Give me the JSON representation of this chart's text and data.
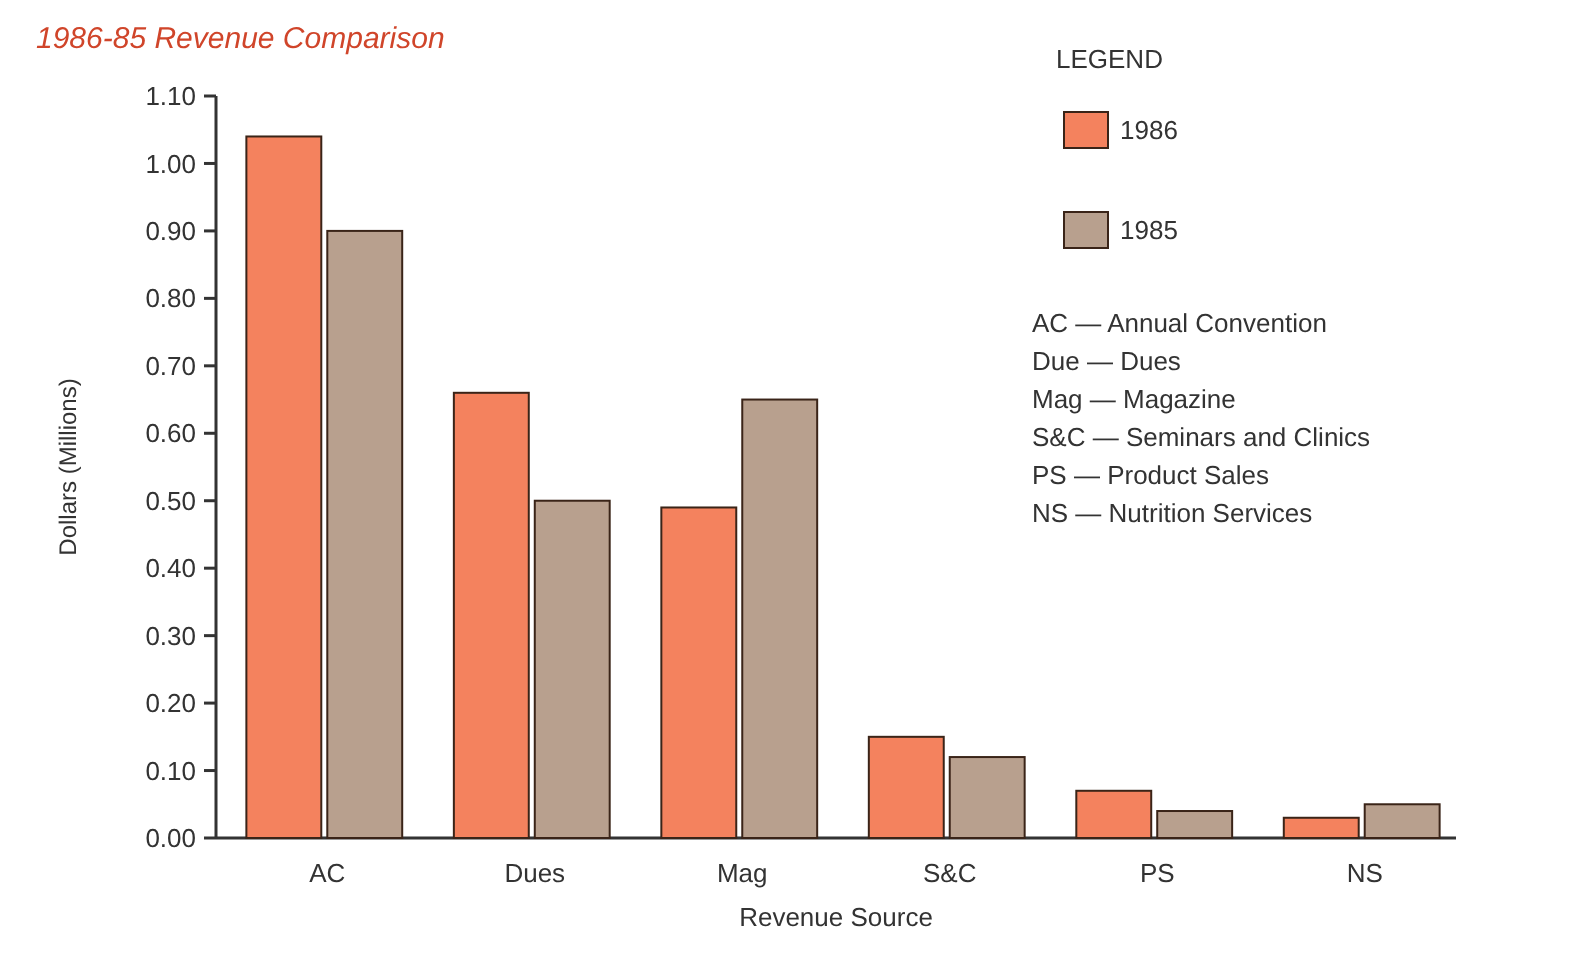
{
  "chart_data": {
    "type": "bar",
    "title": "1986-85 Revenue Comparison",
    "xlabel": "Revenue Source",
    "ylabel": "Dollars (Millions)",
    "legend_title": "LEGEND",
    "legend": "top right",
    "categories": [
      "AC",
      "Dues",
      "Mag",
      "S&C",
      "PS",
      "NS"
    ],
    "series": [
      {
        "name": "1986",
        "color": "#f4825e",
        "values": [
          1.04,
          0.66,
          0.49,
          0.15,
          0.07,
          0.03
        ]
      },
      {
        "name": "1985",
        "color": "#b8a08e",
        "values": [
          0.9,
          0.5,
          0.65,
          0.12,
          0.04,
          0.05
        ]
      }
    ],
    "ylim": [
      0,
      1.1
    ],
    "yticks": [
      {
        "value": 0,
        "label": "0.00"
      },
      {
        "value": 0.1,
        "label": "0.10"
      },
      {
        "value": 0.2,
        "label": "0.20"
      },
      {
        "value": 0.3,
        "label": "0.30"
      },
      {
        "value": 0.4,
        "label": "0.40"
      },
      {
        "value": 0.5,
        "label": "0.50"
      },
      {
        "value": 0.6,
        "label": "0.60"
      },
      {
        "value": 0.7,
        "label": "0.70"
      },
      {
        "value": 0.8,
        "label": "0.80"
      },
      {
        "value": 0.9,
        "label": "0.90"
      },
      {
        "value": 1,
        "label": "1.00"
      },
      {
        "value": 1.1,
        "label": "1.10"
      }
    ],
    "annotations": [
      "AC — Annual Convention",
      "Due — Dues",
      "Mag — Magazine",
      "S&C — Seminars and Clinics",
      "PS — Product Sales",
      "NS — Nutrition Services"
    ]
  }
}
